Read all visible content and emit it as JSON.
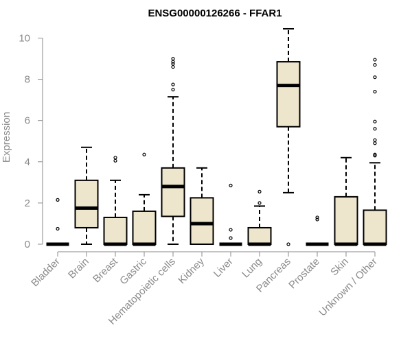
{
  "chart_data": {
    "type": "boxplot",
    "title": "ENSG00000126266 - FFAR1",
    "xlabel": "",
    "ylabel": "Expression",
    "ylim": [
      0,
      10.5
    ],
    "yticks": [
      0,
      2,
      4,
      6,
      8,
      10
    ],
    "box_fill": "#ede6cc",
    "categories": [
      "Bladder",
      "Brain",
      "Breast",
      "Gastric",
      "Hematopoietic cells",
      "Kidney",
      "Liver",
      "Lung",
      "Pancreas",
      "Prostate",
      "Skin",
      "Unknown / Other"
    ],
    "boxes": [
      {
        "label": "Bladder",
        "whisker_low": 0,
        "q1": 0,
        "median": 0,
        "q3": 0,
        "whisker_high": 0,
        "outliers": [
          0.75,
          2.15
        ]
      },
      {
        "label": "Brain",
        "whisker_low": 0,
        "q1": 0.8,
        "median": 1.75,
        "q3": 3.1,
        "whisker_high": 4.7,
        "outliers": []
      },
      {
        "label": "Breast",
        "whisker_low": 0,
        "q1": 0,
        "median": 0,
        "q3": 1.3,
        "whisker_high": 3.1,
        "outliers": [
          4.05,
          4.2
        ]
      },
      {
        "label": "Gastric",
        "whisker_low": 0,
        "q1": 0,
        "median": 0,
        "q3": 1.6,
        "whisker_high": 2.4,
        "outliers": [
          4.35
        ]
      },
      {
        "label": "Hematopoietic cells",
        "whisker_low": 0,
        "q1": 1.35,
        "median": 2.8,
        "q3": 3.7,
        "whisker_high": 7.15,
        "outliers": [
          7.5,
          7.75,
          8.6,
          8.75,
          8.85,
          9.0
        ]
      },
      {
        "label": "Kidney",
        "whisker_low": 0,
        "q1": 0,
        "median": 1.0,
        "q3": 2.25,
        "whisker_high": 3.7,
        "outliers": []
      },
      {
        "label": "Liver",
        "whisker_low": 0,
        "q1": 0,
        "median": 0,
        "q3": 0,
        "whisker_high": 0,
        "outliers": [
          0.3,
          0.7,
          2.85
        ]
      },
      {
        "label": "Lung",
        "whisker_low": 0,
        "q1": 0,
        "median": 0,
        "q3": 0.8,
        "whisker_high": 1.85,
        "outliers": [
          2.0,
          2.55
        ]
      },
      {
        "label": "Pancreas",
        "whisker_low": 2.5,
        "q1": 5.7,
        "median": 7.7,
        "q3": 8.85,
        "whisker_high": 10.45,
        "outliers": [
          0
        ]
      },
      {
        "label": "Prostate",
        "whisker_low": 0,
        "q1": 0,
        "median": 0,
        "q3": 0,
        "whisker_high": 0,
        "outliers": [
          1.2,
          1.3
        ]
      },
      {
        "label": "Skin",
        "whisker_low": 0,
        "q1": 0,
        "median": 0,
        "q3": 2.3,
        "whisker_high": 4.2,
        "outliers": []
      },
      {
        "label": "Unknown / Other",
        "whisker_low": 0,
        "q1": 0,
        "median": 0,
        "q3": 1.65,
        "whisker_high": 3.95,
        "outliers": [
          4.3,
          4.35,
          4.9,
          5.05,
          5.6,
          5.95,
          7.4,
          8.1,
          8.7,
          8.95
        ]
      }
    ]
  }
}
